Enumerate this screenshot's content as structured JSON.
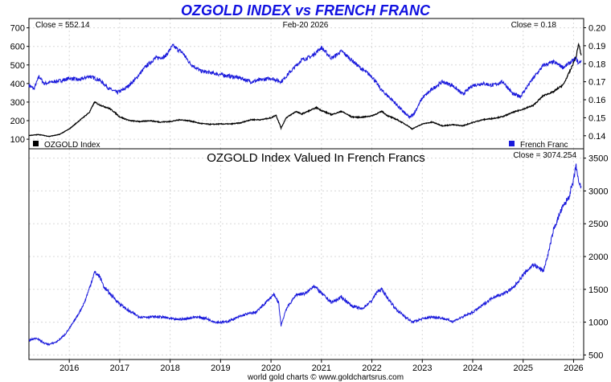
{
  "header": {
    "title": "OZGOLD INDEX vs FRENCH FRANC",
    "date": "Feb-20  2026",
    "footer": "world gold charts © www.goldchartsrus.com"
  },
  "colors": {
    "ozgold": "#000000",
    "franc": "#1a1adc",
    "title": "#1010e0"
  },
  "chart_data": [
    {
      "type": "line",
      "panel": "top",
      "close_left": "Close = 552.14",
      "close_right": "Close = 0.18",
      "x_ticks": [
        "2016",
        "2017",
        "2018",
        "2019",
        "2020",
        "2021",
        "2022",
        "2023",
        "2024",
        "2025",
        "2026"
      ],
      "x_range": [
        2015.2,
        2026.2
      ],
      "y_left": {
        "ticks": [
          "100",
          "200",
          "300",
          "400",
          "500",
          "600",
          "700"
        ],
        "range": [
          70,
          720
        ]
      },
      "y_right": {
        "ticks": [
          "0.14",
          "0.15",
          "0.16",
          "0.17",
          "0.18",
          "0.19",
          "0.20"
        ],
        "range": [
          0.135,
          0.202
        ]
      },
      "legend": [
        {
          "name": "OZGOLD Index",
          "axis": "left",
          "position": "bottom-left"
        },
        {
          "name": "French Franc",
          "axis": "right",
          "position": "bottom-right"
        }
      ],
      "series": [
        {
          "name": "OZGOLD Index",
          "axis": "left",
          "points": [
            [
              2015.2,
              120
            ],
            [
              2015.4,
              125
            ],
            [
              2015.6,
              115
            ],
            [
              2015.8,
              125
            ],
            [
              2016.0,
              155
            ],
            [
              2016.2,
              200
            ],
            [
              2016.4,
              245
            ],
            [
              2016.5,
              300
            ],
            [
              2016.6,
              285
            ],
            [
              2016.8,
              265
            ],
            [
              2016.9,
              245
            ],
            [
              2017.0,
              220
            ],
            [
              2017.2,
              200
            ],
            [
              2017.4,
              195
            ],
            [
              2017.6,
              200
            ],
            [
              2017.8,
              192
            ],
            [
              2018.0,
              195
            ],
            [
              2018.2,
              205
            ],
            [
              2018.4,
              198
            ],
            [
              2018.6,
              185
            ],
            [
              2018.8,
              180
            ],
            [
              2019.0,
              182
            ],
            [
              2019.2,
              182
            ],
            [
              2019.4,
              188
            ],
            [
              2019.6,
              205
            ],
            [
              2019.8,
              205
            ],
            [
              2020.0,
              215
            ],
            [
              2020.1,
              230
            ],
            [
              2020.2,
              160
            ],
            [
              2020.3,
              215
            ],
            [
              2020.5,
              250
            ],
            [
              2020.6,
              235
            ],
            [
              2020.8,
              258
            ],
            [
              2020.9,
              270
            ],
            [
              2021.0,
              255
            ],
            [
              2021.2,
              232
            ],
            [
              2021.4,
              250
            ],
            [
              2021.6,
              220
            ],
            [
              2021.8,
              218
            ],
            [
              2022.0,
              226
            ],
            [
              2022.2,
              250
            ],
            [
              2022.3,
              228
            ],
            [
              2022.5,
              205
            ],
            [
              2022.7,
              175
            ],
            [
              2022.8,
              155
            ],
            [
              2023.0,
              182
            ],
            [
              2023.2,
              192
            ],
            [
              2023.4,
              172
            ],
            [
              2023.6,
              178
            ],
            [
              2023.8,
              172
            ],
            [
              2024.0,
              190
            ],
            [
              2024.2,
              205
            ],
            [
              2024.4,
              212
            ],
            [
              2024.6,
              222
            ],
            [
              2024.8,
              245
            ],
            [
              2025.0,
              262
            ],
            [
              2025.2,
              282
            ],
            [
              2025.4,
              335
            ],
            [
              2025.6,
              355
            ],
            [
              2025.8,
              395
            ],
            [
              2025.95,
              480
            ],
            [
              2026.05,
              545
            ],
            [
              2026.1,
              615
            ],
            [
              2026.15,
              552
            ]
          ]
        },
        {
          "name": "French Franc",
          "axis": "right",
          "points": [
            [
              2015.2,
              0.168
            ],
            [
              2015.3,
              0.166
            ],
            [
              2015.4,
              0.173
            ],
            [
              2015.5,
              0.169
            ],
            [
              2015.7,
              0.17
            ],
            [
              2015.9,
              0.171
            ],
            [
              2016.0,
              0.172
            ],
            [
              2016.2,
              0.171
            ],
            [
              2016.4,
              0.173
            ],
            [
              2016.6,
              0.171
            ],
            [
              2016.8,
              0.166
            ],
            [
              2016.95,
              0.164
            ],
            [
              2017.1,
              0.166
            ],
            [
              2017.3,
              0.171
            ],
            [
              2017.5,
              0.178
            ],
            [
              2017.7,
              0.183
            ],
            [
              2017.9,
              0.184
            ],
            [
              2018.05,
              0.19
            ],
            [
              2018.25,
              0.186
            ],
            [
              2018.4,
              0.18
            ],
            [
              2018.6,
              0.176
            ],
            [
              2018.8,
              0.175
            ],
            [
              2019.0,
              0.174
            ],
            [
              2019.2,
              0.173
            ],
            [
              2019.4,
              0.172
            ],
            [
              2019.6,
              0.17
            ],
            [
              2019.8,
              0.171
            ],
            [
              2020.0,
              0.172
            ],
            [
              2020.2,
              0.17
            ],
            [
              2020.4,
              0.176
            ],
            [
              2020.6,
              0.182
            ],
            [
              2020.8,
              0.184
            ],
            [
              2021.0,
              0.189
            ],
            [
              2021.2,
              0.183
            ],
            [
              2021.4,
              0.187
            ],
            [
              2021.6,
              0.182
            ],
            [
              2021.8,
              0.177
            ],
            [
              2022.0,
              0.173
            ],
            [
              2022.2,
              0.165
            ],
            [
              2022.4,
              0.16
            ],
            [
              2022.6,
              0.154
            ],
            [
              2022.75,
              0.15
            ],
            [
              2022.85,
              0.153
            ],
            [
              2023.0,
              0.161
            ],
            [
              2023.2,
              0.166
            ],
            [
              2023.4,
              0.17
            ],
            [
              2023.6,
              0.168
            ],
            [
              2023.8,
              0.163
            ],
            [
              2024.0,
              0.168
            ],
            [
              2024.2,
              0.169
            ],
            [
              2024.4,
              0.168
            ],
            [
              2024.6,
              0.17
            ],
            [
              2024.8,
              0.163
            ],
            [
              2024.95,
              0.162
            ],
            [
              2025.2,
              0.172
            ],
            [
              2025.4,
              0.179
            ],
            [
              2025.6,
              0.181
            ],
            [
              2025.8,
              0.178
            ],
            [
              2025.95,
              0.181
            ],
            [
              2026.05,
              0.183
            ],
            [
              2026.1,
              0.18
            ],
            [
              2026.15,
              0.182
            ]
          ]
        }
      ]
    },
    {
      "type": "line",
      "panel": "bottom",
      "title": "OZGOLD Index Valued In French Francs",
      "close_right": "Close = 3074.254",
      "x_ticks": [
        "2016",
        "2017",
        "2018",
        "2019",
        "2020",
        "2021",
        "2022",
        "2023",
        "2024",
        "2025",
        "2026"
      ],
      "x_range": [
        2015.2,
        2026.2
      ],
      "y_right": {
        "ticks": [
          "500",
          "1000",
          "1500",
          "2000",
          "2500",
          "3000",
          "3500"
        ],
        "range": [
          480,
          3520
        ]
      },
      "series": [
        {
          "name": "OZGOLD Index Valued In French Francs",
          "axis": "right",
          "points": [
            [
              2015.2,
              720
            ],
            [
              2015.35,
              760
            ],
            [
              2015.5,
              680
            ],
            [
              2015.6,
              660
            ],
            [
              2015.75,
              700
            ],
            [
              2015.9,
              800
            ],
            [
              2016.0,
              900
            ],
            [
              2016.1,
              1020
            ],
            [
              2016.2,
              1150
            ],
            [
              2016.3,
              1300
            ],
            [
              2016.4,
              1520
            ],
            [
              2016.5,
              1760
            ],
            [
              2016.6,
              1700
            ],
            [
              2016.7,
              1520
            ],
            [
              2016.8,
              1440
            ],
            [
              2016.9,
              1360
            ],
            [
              2017.0,
              1280
            ],
            [
              2017.2,
              1160
            ],
            [
              2017.4,
              1080
            ],
            [
              2017.6,
              1080
            ],
            [
              2017.8,
              1080
            ],
            [
              2017.9,
              1070
            ],
            [
              2018.1,
              1040
            ],
            [
              2018.3,
              1050
            ],
            [
              2018.5,
              1080
            ],
            [
              2018.7,
              1060
            ],
            [
              2018.9,
              1000
            ],
            [
              2019.1,
              1000
            ],
            [
              2019.3,
              1060
            ],
            [
              2019.5,
              1120
            ],
            [
              2019.7,
              1150
            ],
            [
              2019.9,
              1300
            ],
            [
              2020.05,
              1420
            ],
            [
              2020.15,
              1300
            ],
            [
              2020.2,
              950
            ],
            [
              2020.3,
              1200
            ],
            [
              2020.5,
              1420
            ],
            [
              2020.7,
              1440
            ],
            [
              2020.85,
              1560
            ],
            [
              2021.0,
              1440
            ],
            [
              2021.2,
              1300
            ],
            [
              2021.4,
              1380
            ],
            [
              2021.6,
              1250
            ],
            [
              2021.8,
              1200
            ],
            [
              2022.0,
              1330
            ],
            [
              2022.1,
              1460
            ],
            [
              2022.2,
              1500
            ],
            [
              2022.3,
              1380
            ],
            [
              2022.5,
              1180
            ],
            [
              2022.7,
              1060
            ],
            [
              2022.8,
              1000
            ],
            [
              2023.0,
              1050
            ],
            [
              2023.2,
              1080
            ],
            [
              2023.4,
              1060
            ],
            [
              2023.6,
              1010
            ],
            [
              2023.8,
              1080
            ],
            [
              2024.0,
              1150
            ],
            [
              2024.2,
              1260
            ],
            [
              2024.4,
              1380
            ],
            [
              2024.6,
              1430
            ],
            [
              2024.8,
              1520
            ],
            [
              2025.0,
              1720
            ],
            [
              2025.2,
              1880
            ],
            [
              2025.4,
              1780
            ],
            [
              2025.5,
              2050
            ],
            [
              2025.6,
              2400
            ],
            [
              2025.75,
              2700
            ],
            [
              2025.9,
              2900
            ],
            [
              2026.0,
              3150
            ],
            [
              2026.05,
              3400
            ],
            [
              2026.1,
              3100
            ],
            [
              2026.15,
              3074
            ]
          ]
        }
      ]
    }
  ]
}
